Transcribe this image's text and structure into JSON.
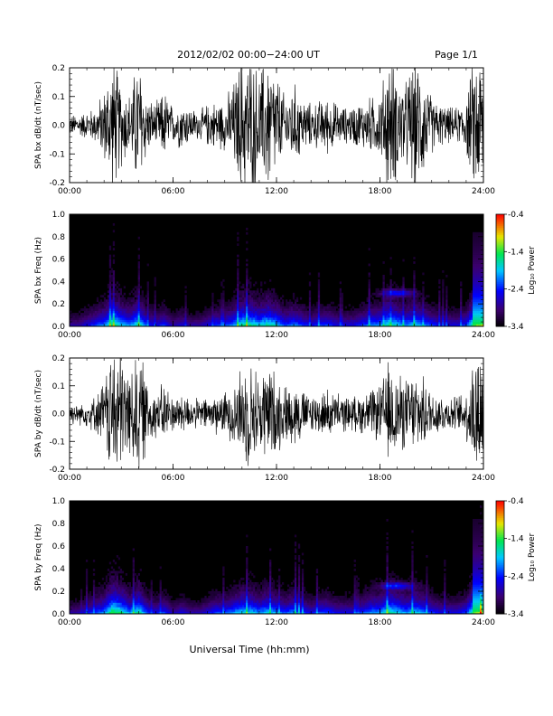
{
  "header": {
    "title": "2012/02/02  00:00−24:00 UT",
    "page": "Page 1/1"
  },
  "xlabel": "Universal Time (hh:mm)",
  "colorbar": {
    "label": "Log₁₀ Power",
    "ticks": [
      "-0.4",
      "-1.4",
      "-2.4",
      "-3.4"
    ]
  },
  "chart_data": [
    {
      "type": "line",
      "ylabel": "SPA bx dB/dt (nT/sec)",
      "xlim": [
        0,
        24
      ],
      "ylim": [
        -0.2,
        0.2
      ],
      "xticks": [
        "00:00",
        "06:00",
        "12:00",
        "18:00",
        "24:00"
      ],
      "yticks": [
        "-0.2",
        "-0.1",
        "0.0",
        "0.1",
        "0.2"
      ],
      "series": [
        {
          "x": [
            0,
            0.5,
            1,
            1.5,
            2,
            2.5,
            3,
            3.5,
            4,
            4.5,
            5,
            5.5,
            6,
            6.5,
            7,
            7.5,
            8,
            8.5,
            9,
            9.5,
            10,
            10.5,
            11,
            11.5,
            12,
            12.5,
            13,
            13.5,
            14,
            14.5,
            15,
            15.5,
            16,
            16.5,
            17,
            17.5,
            18,
            18.5,
            19,
            19.5,
            20,
            20.5,
            21,
            21.5,
            22,
            22.5,
            23,
            23.5,
            24
          ],
          "amplitude": [
            0.03,
            0.03,
            0.04,
            0.05,
            0.1,
            0.2,
            0.12,
            0.09,
            0.2,
            0.08,
            0.06,
            0.1,
            0.05,
            0.07,
            0.05,
            0.04,
            0.06,
            0.07,
            0.07,
            0.12,
            0.2,
            0.2,
            0.15,
            0.2,
            0.15,
            0.08,
            0.12,
            0.08,
            0.06,
            0.07,
            0.08,
            0.06,
            0.05,
            0.06,
            0.07,
            0.08,
            0.09,
            0.2,
            0.15,
            0.12,
            0.2,
            0.15,
            0.08,
            0.06,
            0.05,
            0.05,
            0.08,
            0.2,
            0.2
          ]
        }
      ]
    },
    {
      "type": "heatmap",
      "ylabel": "SPA bx Freq (Hz)",
      "xlim": [
        0,
        24
      ],
      "ylim": [
        0,
        1.0
      ],
      "zlim": [
        -3.4,
        -0.4
      ],
      "xticks": [
        "00:00",
        "06:00",
        "12:00",
        "18:00",
        "24:00"
      ],
      "yticks": [
        "0.0",
        "0.2",
        "0.4",
        "0.6",
        "0.8",
        "1.0"
      ],
      "x": [
        0,
        0.5,
        1,
        1.5,
        2,
        2.5,
        3,
        3.5,
        4,
        4.5,
        5,
        5.5,
        6,
        6.5,
        7,
        7.5,
        8,
        8.5,
        9,
        9.5,
        10,
        10.5,
        11,
        11.5,
        12,
        12.5,
        13,
        13.5,
        14,
        14.5,
        15,
        15.5,
        16,
        16.5,
        17,
        17.5,
        18,
        18.5,
        19,
        19.5,
        20,
        20.5,
        21,
        21.5,
        22,
        22.5,
        23,
        23.5,
        24
      ],
      "activity": [
        0.3,
        0.3,
        0.4,
        0.5,
        0.6,
        0.9,
        0.7,
        0.6,
        0.8,
        0.5,
        0.4,
        0.5,
        0.3,
        0.4,
        0.3,
        0.3,
        0.4,
        0.5,
        0.5,
        0.6,
        0.8,
        0.8,
        0.7,
        0.8,
        0.7,
        0.5,
        0.6,
        0.5,
        0.4,
        0.5,
        0.5,
        0.4,
        0.4,
        0.4,
        0.5,
        0.6,
        0.6,
        0.8,
        0.7,
        0.6,
        0.7,
        0.6,
        0.5,
        0.4,
        0.4,
        0.4,
        0.5,
        0.9,
        1.0
      ],
      "features": "narrowband 0.3 Hz emission near 19:00 UT"
    },
    {
      "type": "line",
      "ylabel": "SPA by dB/dt (nT/sec)",
      "xlim": [
        0,
        24
      ],
      "ylim": [
        -0.2,
        0.2
      ],
      "xticks": [
        "00:00",
        "06:00",
        "12:00",
        "18:00",
        "24:00"
      ],
      "yticks": [
        "-0.2",
        "-0.1",
        "0.0",
        "0.1",
        "0.2"
      ],
      "series": [
        {
          "x": [
            0,
            0.5,
            1,
            1.5,
            2,
            2.5,
            3,
            3.5,
            4,
            4.5,
            5,
            5.5,
            6,
            6.5,
            7,
            7.5,
            8,
            8.5,
            9,
            9.5,
            10,
            10.5,
            11,
            11.5,
            12,
            12.5,
            13,
            13.5,
            14,
            14.5,
            15,
            15.5,
            16,
            16.5,
            17,
            17.5,
            18,
            18.5,
            19,
            19.5,
            20,
            20.5,
            21,
            21.5,
            22,
            22.5,
            23,
            23.5,
            24
          ],
          "amplitude": [
            0.03,
            0.03,
            0.04,
            0.05,
            0.1,
            0.2,
            0.2,
            0.12,
            0.2,
            0.1,
            0.07,
            0.09,
            0.05,
            0.06,
            0.05,
            0.04,
            0.05,
            0.06,
            0.06,
            0.09,
            0.14,
            0.15,
            0.12,
            0.15,
            0.12,
            0.08,
            0.1,
            0.07,
            0.06,
            0.06,
            0.07,
            0.06,
            0.05,
            0.05,
            0.06,
            0.07,
            0.08,
            0.15,
            0.12,
            0.1,
            0.12,
            0.1,
            0.07,
            0.06,
            0.05,
            0.05,
            0.07,
            0.2,
            0.2
          ]
        }
      ]
    },
    {
      "type": "heatmap",
      "ylabel": "SPA by Freq (Hz)",
      "xlim": [
        0,
        24
      ],
      "ylim": [
        0,
        1.0
      ],
      "zlim": [
        -3.4,
        -0.4
      ],
      "xticks": [
        "00:00",
        "06:00",
        "12:00",
        "18:00",
        "24:00"
      ],
      "yticks": [
        "0.0",
        "0.2",
        "0.4",
        "0.6",
        "0.8",
        "1.0"
      ],
      "x": [
        0,
        0.5,
        1,
        1.5,
        2,
        2.5,
        3,
        3.5,
        4,
        4.5,
        5,
        5.5,
        6,
        6.5,
        7,
        7.5,
        8,
        8.5,
        9,
        9.5,
        10,
        10.5,
        11,
        11.5,
        12,
        12.5,
        13,
        13.5,
        14,
        14.5,
        15,
        15.5,
        16,
        16.5,
        17,
        17.5,
        18,
        18.5,
        19,
        19.5,
        20,
        20.5,
        21,
        21.5,
        22,
        22.5,
        23,
        23.5,
        24
      ],
      "activity": [
        0.3,
        0.3,
        0.4,
        0.5,
        0.6,
        0.9,
        0.8,
        0.6,
        0.8,
        0.5,
        0.4,
        0.5,
        0.3,
        0.4,
        0.3,
        0.3,
        0.4,
        0.5,
        0.5,
        0.6,
        0.7,
        0.7,
        0.6,
        0.7,
        0.6,
        0.5,
        0.6,
        0.5,
        0.4,
        0.5,
        0.5,
        0.4,
        0.4,
        0.4,
        0.5,
        0.6,
        0.6,
        0.8,
        0.7,
        0.6,
        0.7,
        0.6,
        0.5,
        0.4,
        0.4,
        0.4,
        0.5,
        0.9,
        1.0
      ],
      "features": "narrowband 0.25 Hz emission near 19:00 UT"
    }
  ]
}
